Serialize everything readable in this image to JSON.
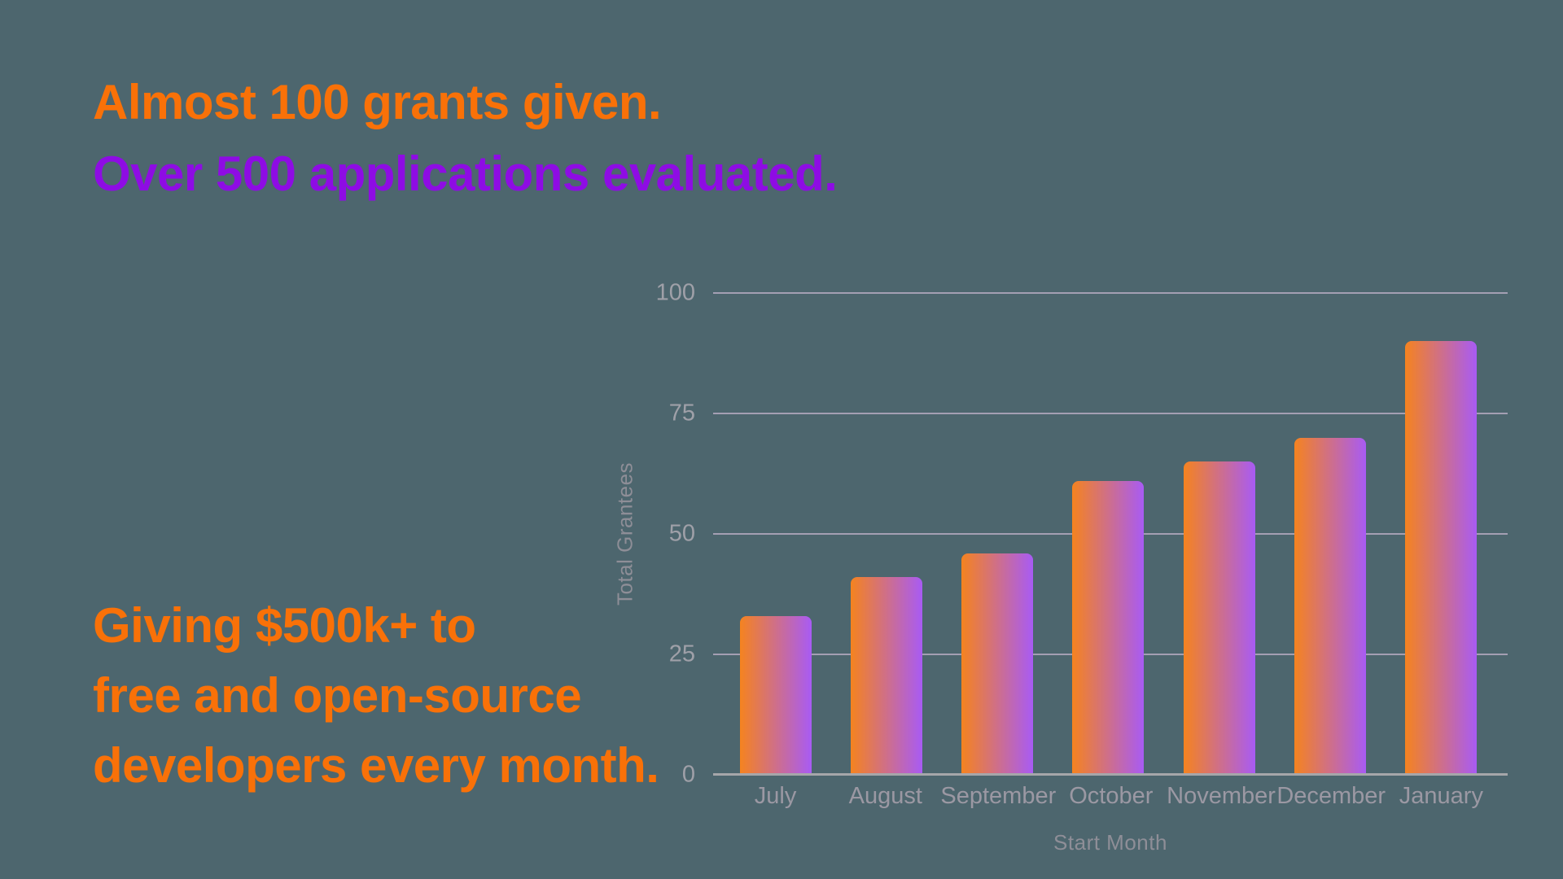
{
  "slide": {
    "background_color": "#4D666E",
    "headline_top": {
      "line1": {
        "text": "Almost 100 grants given.",
        "color": "#F97108"
      },
      "line2": {
        "text": "Over 500 applications evaluated.",
        "color": "#8E0CE4"
      }
    },
    "headline_bottom": {
      "color": "#F97108",
      "line1": "Giving $500k+ to",
      "line2": "free and open-source",
      "line3": "developers every month."
    }
  },
  "chart_data": {
    "type": "bar",
    "title": "",
    "categories": [
      "July",
      "August",
      "September",
      "October",
      "November",
      "December",
      "January"
    ],
    "values": [
      33,
      41,
      46,
      61,
      65,
      70,
      90
    ],
    "xlabel": "Start Month",
    "ylabel": "Total Grantees",
    "ylim": [
      0,
      100
    ],
    "yticks": [
      0,
      25,
      50,
      75,
      100
    ],
    "grid": true,
    "legend": false,
    "bar_gradient_left": "#F5831F",
    "bar_gradient_right": "#A85BF4",
    "gridline_color": "#A49FB3",
    "axis_line_color": "#A6A6AA",
    "ytick_label_color": "#9FA0A8",
    "xtick_label_color": "#9B98A3",
    "axis_title_color": "#8E8E97"
  }
}
